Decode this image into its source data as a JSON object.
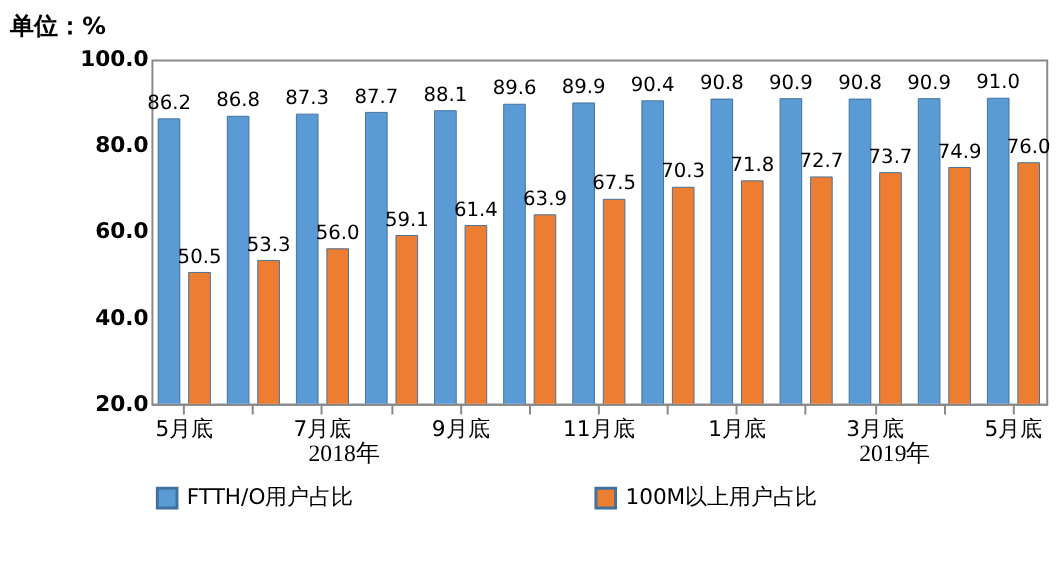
{
  "chart_data": {
    "type": "bar",
    "title": "单位：%",
    "categories": [
      "5月底",
      null,
      "7月底",
      null,
      "9月底",
      null,
      "11月底",
      null,
      "1月底",
      null,
      "3月底",
      null,
      "5月底"
    ],
    "series": [
      {
        "name": "FTTH/O用户占比",
        "color": "#5b9bd5",
        "values": [
          86.2,
          86.8,
          87.3,
          87.7,
          88.1,
          89.6,
          89.9,
          90.4,
          90.8,
          90.9,
          90.8,
          90.9,
          91.0
        ],
        "value_labels": [
          "86.2",
          "86.8",
          "87.3",
          "87.7",
          "88.1",
          "89.6",
          "89.9",
          "90.4",
          "90.8",
          "90.9",
          "90.8",
          "90.9",
          "91.0"
        ]
      },
      {
        "name": "100M以上用户占比",
        "color": "#ed7d31",
        "values": [
          50.5,
          53.3,
          56.0,
          59.1,
          61.4,
          63.9,
          67.5,
          70.3,
          71.8,
          72.7,
          73.7,
          74.9,
          76.0
        ],
        "value_labels": [
          "50.5",
          "53.3",
          "56.0",
          "59.1",
          "61.4",
          "63.9",
          "67.5",
          "70.3",
          "71.8",
          "72.7",
          "73.7",
          "74.9",
          "76.0"
        ]
      }
    ],
    "ylim": [
      20,
      100
    ],
    "yticks": [
      {
        "value": 20,
        "label": "20.0"
      },
      {
        "value": 40,
        "label": "40.0"
      },
      {
        "value": 60,
        "label": "60.0"
      },
      {
        "value": 80,
        "label": "80.0"
      },
      {
        "value": 100,
        "label": "100.0"
      }
    ],
    "annotations": [
      "2018年",
      "2019年"
    ],
    "grid": false,
    "legend": "bottom"
  }
}
